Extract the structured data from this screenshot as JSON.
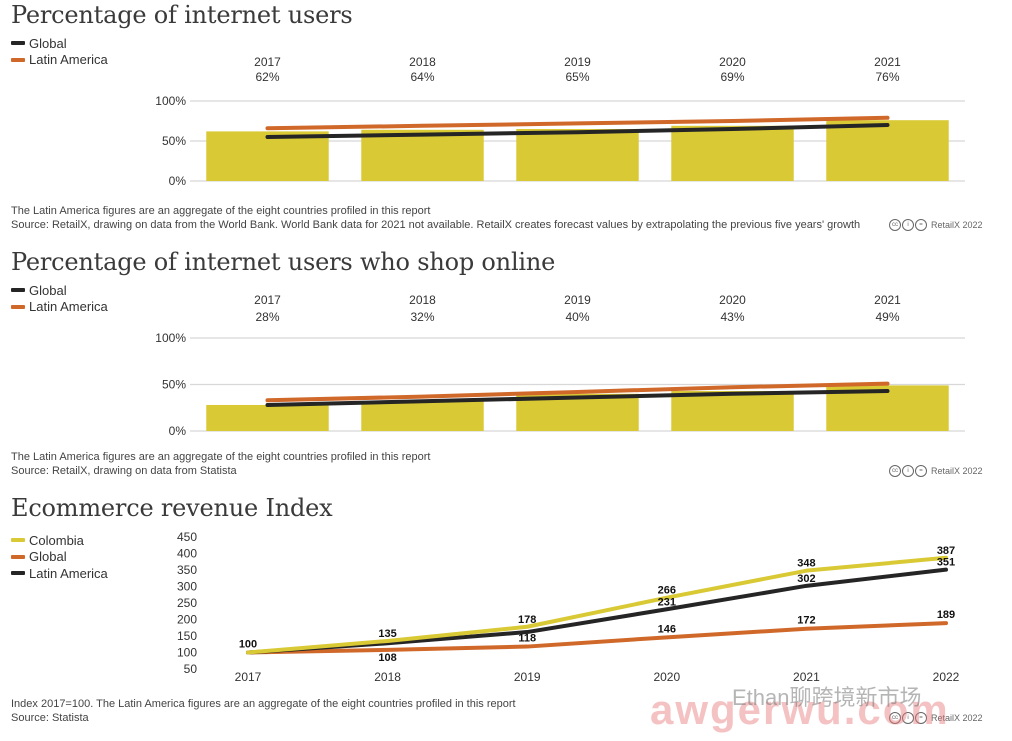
{
  "colors": {
    "yellow": "#d9c935",
    "orange": "#d0682a",
    "black": "#252525",
    "grid": "#d8d8d8",
    "text": "#333333"
  },
  "chart1": {
    "title": "Percentage of internet users",
    "legend": [
      "Global",
      "Latin America"
    ],
    "note1": "The Latin America figures are an aggregate of the eight countries profiled in this report",
    "note2": "Source: RetailX, drawing on data from the World Bank. World Bank data for 2021 not available. RetailX creates forecast values by extrapolating the previous five years' growth",
    "brand": "RetailX 2022"
  },
  "chart2": {
    "title": "Percentage of internet users who shop online",
    "legend": [
      "Global",
      "Latin America"
    ],
    "note1": "The Latin America figures are an aggregate of the eight countries profiled in this report",
    "note2": "Source: RetailX, drawing on data from Statista",
    "brand": "RetailX 2022"
  },
  "chart3": {
    "title": "Ecommerce revenue Index",
    "legend": [
      "Colombia",
      "Global",
      "Latin America"
    ],
    "note1": "Index 2017=100. The Latin America figures are an aggregate of the eight countries profiled in this report",
    "note2": "Source: Statista",
    "brand": "RetailX 2022"
  },
  "watermark": {
    "line1": "Ethan聊跨境新市场",
    "line2": "awgerwu.com"
  },
  "chart_data": [
    {
      "type": "bar",
      "title": "Percentage of internet users",
      "categories": [
        "2017",
        "2018",
        "2019",
        "2020",
        "2021"
      ],
      "category_labels": [
        "62%",
        "64%",
        "65%",
        "69%",
        "76%"
      ],
      "series": [
        {
          "name": "Bars",
          "kind": "bar",
          "values": [
            62,
            64,
            65,
            69,
            76
          ]
        },
        {
          "name": "Global",
          "kind": "line",
          "values": [
            55,
            58,
            61,
            65,
            70
          ]
        },
        {
          "name": "Latin America",
          "kind": "line",
          "values": [
            66,
            69,
            72,
            75,
            79
          ]
        }
      ],
      "yticks": [
        "0%",
        "50%",
        "100%"
      ],
      "ylim": [
        0,
        100
      ]
    },
    {
      "type": "bar",
      "title": "Percentage of internet users who shop online",
      "categories": [
        "2017",
        "2018",
        "2019",
        "2020",
        "2021"
      ],
      "category_labels": [
        "28%",
        "32%",
        "40%",
        "43%",
        "49%"
      ],
      "series": [
        {
          "name": "Bars",
          "kind": "bar",
          "values": [
            28,
            32,
            40,
            43,
            49
          ]
        },
        {
          "name": "Global",
          "kind": "line",
          "values": [
            28,
            32,
            36,
            40,
            43
          ]
        },
        {
          "name": "Latin America",
          "kind": "line",
          "values": [
            33,
            37,
            42,
            47,
            51
          ]
        }
      ],
      "yticks": [
        "0%",
        "50%",
        "100%"
      ],
      "ylim": [
        0,
        100
      ]
    },
    {
      "type": "line",
      "title": "Ecommerce revenue Index",
      "categories": [
        "2017",
        "2018",
        "2019",
        "2020",
        "2021",
        "2022"
      ],
      "series": [
        {
          "name": "Colombia",
          "values": [
            100,
            135,
            178,
            266,
            348,
            387
          ],
          "labels": [
            "100",
            "135",
            "178",
            "266",
            "348",
            "387"
          ]
        },
        {
          "name": "Global",
          "values": [
            100,
            108,
            118,
            146,
            172,
            189
          ],
          "labels": [
            "",
            "108",
            "118",
            "146",
            "172",
            "189"
          ]
        },
        {
          "name": "Latin America",
          "values": [
            100,
            128,
            162,
            231,
            302,
            351
          ],
          "labels": [
            "",
            "",
            "",
            "231",
            "302",
            "351"
          ]
        }
      ],
      "yticks": [
        "50",
        "100",
        "150",
        "200",
        "250",
        "300",
        "350",
        "400",
        "450"
      ],
      "ylim": [
        50,
        450
      ]
    }
  ]
}
